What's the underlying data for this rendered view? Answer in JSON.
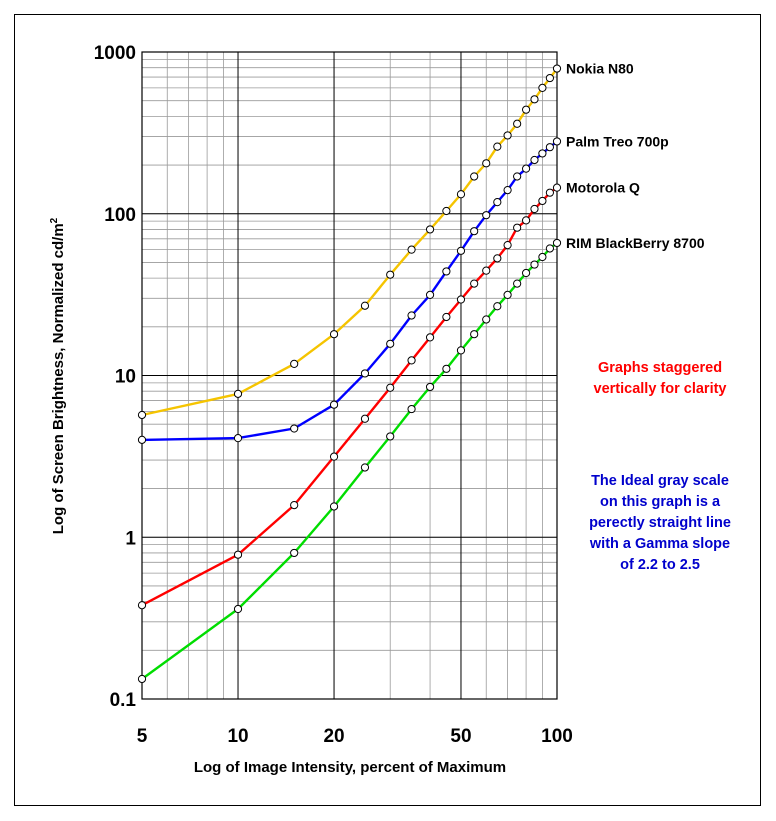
{
  "chart_data": {
    "type": "line",
    "xlabel": "Log of Image Intensity, percent of Maximum",
    "ylabel_main": "Log of Screen Brightness, Normalized cd/m",
    "ylabel_sup": "2",
    "x_scale": "log",
    "y_scale": "log",
    "xlim": [
      5,
      100
    ],
    "ylim": [
      0.1,
      1000
    ],
    "x_ticks": [
      5,
      10,
      20,
      50,
      100
    ],
    "x_tick_labels": [
      "5",
      "10",
      "20",
      "50",
      "100"
    ],
    "y_ticks": [
      0.1,
      1,
      10,
      100,
      1000
    ],
    "y_tick_labels": [
      "0.1",
      "1",
      "10",
      "100",
      "1000"
    ],
    "grid": true,
    "series": [
      {
        "name": "Nokia N80",
        "color": "#f5c400",
        "points": [
          [
            5,
            5.7
          ],
          [
            10,
            7.7
          ],
          [
            15,
            11.8
          ],
          [
            20,
            18
          ],
          [
            25,
            27
          ],
          [
            30,
            42
          ],
          [
            35,
            60
          ],
          [
            40,
            80
          ],
          [
            45,
            104
          ],
          [
            50,
            132
          ],
          [
            55,
            170
          ],
          [
            60,
            205
          ],
          [
            65,
            260
          ],
          [
            70,
            305
          ],
          [
            75,
            360
          ],
          [
            80,
            440
          ],
          [
            85,
            510
          ],
          [
            90,
            600
          ],
          [
            95,
            690
          ],
          [
            100,
            790
          ]
        ]
      },
      {
        "name": "Palm Treo 700p",
        "color": "#0000ff",
        "points": [
          [
            5,
            4.0
          ],
          [
            10,
            4.1
          ],
          [
            15,
            4.7
          ],
          [
            20,
            6.6
          ],
          [
            25,
            10.3
          ],
          [
            30,
            15.7
          ],
          [
            35,
            23.5
          ],
          [
            40,
            31.5
          ],
          [
            45,
            44
          ],
          [
            50,
            59
          ],
          [
            55,
            78
          ],
          [
            60,
            98
          ],
          [
            65,
            118
          ],
          [
            70,
            140
          ],
          [
            75,
            170
          ],
          [
            80,
            190
          ],
          [
            85,
            215
          ],
          [
            90,
            236
          ],
          [
            95,
            258
          ],
          [
            100,
            280
          ]
        ]
      },
      {
        "name": "Motorola Q",
        "color": "#ff0000",
        "points": [
          [
            5,
            0.38
          ],
          [
            10,
            0.78
          ],
          [
            15,
            1.58
          ],
          [
            20,
            3.15
          ],
          [
            25,
            5.4
          ],
          [
            30,
            8.4
          ],
          [
            35,
            12.4
          ],
          [
            40,
            17.2
          ],
          [
            45,
            23
          ],
          [
            50,
            29.5
          ],
          [
            55,
            37
          ],
          [
            60,
            44.5
          ],
          [
            65,
            53
          ],
          [
            70,
            64
          ],
          [
            75,
            82
          ],
          [
            80,
            91
          ],
          [
            85,
            107
          ],
          [
            90,
            120
          ],
          [
            95,
            135
          ],
          [
            100,
            145
          ]
        ]
      },
      {
        "name": "RIM BlackBerry 8700",
        "color": "#00dd00",
        "points": [
          [
            5,
            0.133
          ],
          [
            10,
            0.36
          ],
          [
            15,
            0.8
          ],
          [
            20,
            1.55
          ],
          [
            25,
            2.7
          ],
          [
            30,
            4.2
          ],
          [
            35,
            6.2
          ],
          [
            40,
            8.5
          ],
          [
            45,
            11
          ],
          [
            50,
            14.3
          ],
          [
            55,
            18
          ],
          [
            60,
            22.2
          ],
          [
            65,
            26.8
          ],
          [
            70,
            31.5
          ],
          [
            75,
            37
          ],
          [
            80,
            43
          ],
          [
            85,
            48.5
          ],
          [
            90,
            54
          ],
          [
            95,
            61
          ],
          [
            100,
            66
          ]
        ]
      }
    ]
  },
  "annotations": {
    "staggered_note": "Graphs staggered\nvertically for clarity",
    "ideal_note": "The Ideal gray scale\non this graph is a\nperectly straight line\nwith a Gamma slope\nof 2.2 to 2.5"
  }
}
